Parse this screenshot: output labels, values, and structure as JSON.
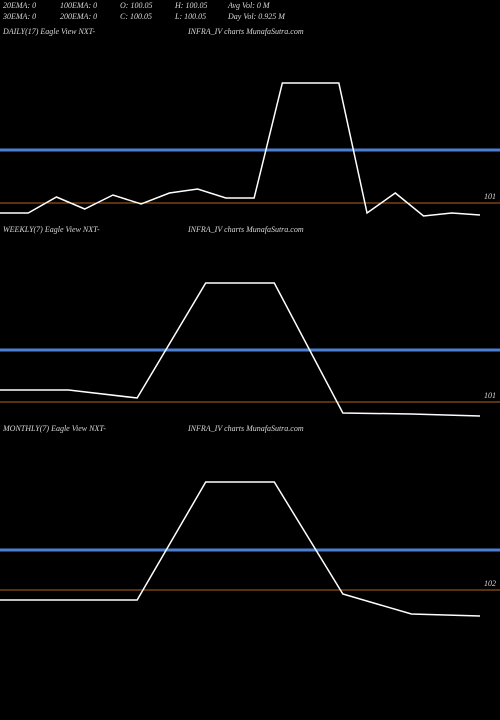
{
  "header": {
    "rows": [
      [
        "20EMA: 0",
        "100EMA: 0",
        "O: 100.05",
        "H: 100.05",
        "Avg Vol: 0  M"
      ],
      [
        "30EMA: 0",
        "200EMA: 0",
        "C: 100.05",
        "L: 100.05",
        "Day Vol: 0.925 M"
      ]
    ]
  },
  "chart_data": [
    {
      "type": "line",
      "title": "DAILY(17) Eagle  View  NXT-",
      "subtitle": "INFRA_IV charts MunafaSutra.com",
      "ylim": [
        100.5,
        104.5
      ],
      "level": 101,
      "average": 102.06,
      "color": "#ffffff",
      "average_color": "#4a7fd4",
      "level_color": "#b5651d",
      "values": [
        100.8,
        100.8,
        101.12,
        100.88,
        101.16,
        100.98,
        101.2,
        101.28,
        101.1,
        101.1,
        103.4,
        103.4,
        103.4,
        100.8,
        101.2,
        100.74,
        100.8,
        100.76
      ]
    },
    {
      "type": "line",
      "title": "WEEKLY(7) Eagle  View  NXT-",
      "subtitle": "INFRA_IV charts MunafaSutra.com",
      "ylim": [
        100.5,
        104.5
      ],
      "level": 101,
      "average": 102.04,
      "color": "#ffffff",
      "average_color": "#4a7fd4",
      "level_color": "#b5651d",
      "values": [
        101.24,
        101.24,
        101.08,
        103.38,
        103.38,
        100.78,
        100.76,
        100.72
      ]
    },
    {
      "type": "line",
      "title": "MONTHLY(7) Eagle  View  NXT-",
      "subtitle": "INFRA_IV charts MunafaSutra.com",
      "ylim": [
        101.4,
        105.4
      ],
      "level": 102,
      "average": 102.8,
      "color": "#ffffff",
      "average_color": "#4a7fd4",
      "level_color": "#b5651d",
      "values": [
        101.8,
        101.8,
        101.8,
        104.16,
        104.16,
        101.92,
        101.52,
        101.48
      ]
    }
  ]
}
